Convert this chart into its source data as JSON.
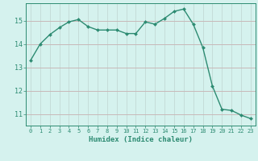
{
  "xlabel": "Humidex (Indice chaleur)",
  "x": [
    0,
    1,
    2,
    3,
    4,
    5,
    6,
    7,
    8,
    9,
    10,
    11,
    12,
    13,
    14,
    15,
    16,
    17,
    18,
    19,
    20,
    21,
    22,
    23
  ],
  "y": [
    13.3,
    14.0,
    14.4,
    14.7,
    14.95,
    15.05,
    14.75,
    14.6,
    14.6,
    14.6,
    14.45,
    14.45,
    14.95,
    14.85,
    15.1,
    15.4,
    15.5,
    14.85,
    13.85,
    12.2,
    11.2,
    11.15,
    10.95,
    10.8
  ],
  "line_color": "#2d8b72",
  "marker": "D",
  "marker_size": 2.0,
  "line_width": 1.0,
  "bg_color": "#d5f2ee",
  "hgrid_color": "#c8b8b8",
  "vgrid_color": "#c5ddd9",
  "axis_color": "#2d8b72",
  "tick_color": "#2d8b72",
  "label_color": "#2d8b72",
  "ylim": [
    10.5,
    15.75
  ],
  "xlim": [
    -0.5,
    23.5
  ],
  "yticks": [
    11,
    12,
    13,
    14,
    15
  ],
  "xticks": [
    0,
    1,
    2,
    3,
    4,
    5,
    6,
    7,
    8,
    9,
    10,
    11,
    12,
    13,
    14,
    15,
    16,
    17,
    18,
    19,
    20,
    21,
    22,
    23
  ],
  "xlabel_fontsize": 6.5,
  "ytick_fontsize": 6.0,
  "xtick_fontsize": 5.0
}
